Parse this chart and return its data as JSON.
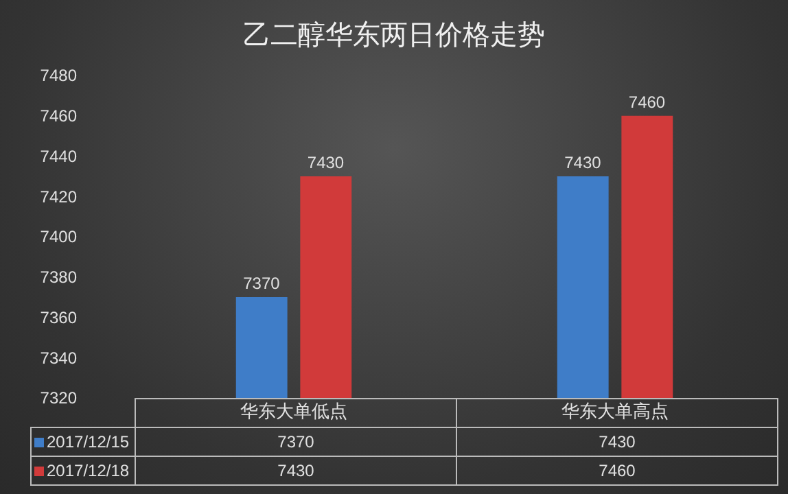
{
  "chart_data": {
    "type": "bar",
    "title": "乙二醇华东两日价格走势",
    "categories": [
      "华东大单低点",
      "华东大单高点"
    ],
    "series": [
      {
        "name": "2017/12/15",
        "color": "#3f7dc8",
        "values": [
          7370,
          7430
        ],
        "value_labels": [
          "7370",
          "7430"
        ]
      },
      {
        "name": "2017/12/18",
        "color": "#d13a3a",
        "values": [
          7430,
          7460
        ],
        "value_labels": [
          "7430",
          "7460"
        ]
      }
    ],
    "ylim": [
      7320,
      7480
    ],
    "yticks": [
      7320,
      7340,
      7360,
      7380,
      7400,
      7420,
      7440,
      7460,
      7480
    ],
    "grid": false,
    "legend": "bottom left",
    "data_labels": true,
    "annotations": [
      "7370",
      "7430",
      "7430",
      "7460"
    ]
  }
}
